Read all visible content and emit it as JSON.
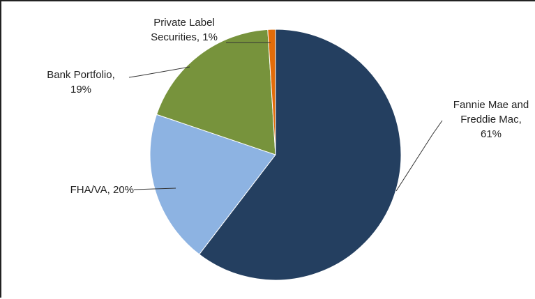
{
  "chart_data": {
    "type": "pie",
    "title": "",
    "legend": "none",
    "slices": [
      {
        "label_lines": [
          "Fannie Mae and",
          "Freddie Mac,",
          "61%"
        ],
        "category": "Fannie Mae and Freddie Mac",
        "value": 61,
        "color": "#243f60"
      },
      {
        "label_lines": [
          "FHA/VA, 20%"
        ],
        "category": "FHA/VA",
        "value": 20,
        "color": "#8db3e2"
      },
      {
        "label_lines": [
          "Bank Portfolio,",
          "19%"
        ],
        "category": "Bank Portfolio",
        "value": 19,
        "color": "#77933c"
      },
      {
        "label_lines": [
          "Private Label",
          "Securities, 1%"
        ],
        "category": "Private Label Securities",
        "value": 1,
        "color": "#e36c09"
      }
    ]
  }
}
